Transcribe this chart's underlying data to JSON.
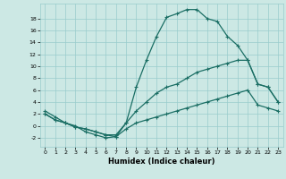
{
  "xlabel": "Humidex (Indice chaleur)",
  "ylabel": "",
  "xlim": [
    -0.5,
    23.5
  ],
  "ylim": [
    -3.5,
    20.5
  ],
  "yticks": [
    -2,
    0,
    2,
    4,
    6,
    8,
    10,
    12,
    14,
    16,
    18
  ],
  "xticks": [
    0,
    1,
    2,
    3,
    4,
    5,
    6,
    7,
    8,
    9,
    10,
    11,
    12,
    13,
    14,
    15,
    16,
    17,
    18,
    19,
    20,
    21,
    22,
    23
  ],
  "bg_color": "#cce8e4",
  "grid_color": "#99cccc",
  "line_color": "#1a6e64",
  "line1_x": [
    0,
    1,
    2,
    3,
    4,
    5,
    6,
    7,
    8,
    9,
    10,
    11,
    12,
    13,
    14,
    15,
    16,
    17,
    18,
    19,
    20,
    21,
    22,
    23
  ],
  "line1_y": [
    2.5,
    1.5,
    0.5,
    0.0,
    -1.0,
    -1.5,
    -2.0,
    -1.8,
    0.5,
    6.5,
    11.0,
    15.0,
    18.2,
    18.8,
    19.5,
    19.5,
    18.0,
    17.5,
    15.0,
    13.5,
    11.0,
    7.0,
    6.5,
    4.0
  ],
  "line2_x": [
    0,
    1,
    2,
    3,
    4,
    5,
    6,
    7,
    8,
    9,
    10,
    11,
    12,
    13,
    14,
    15,
    16,
    17,
    18,
    19,
    20,
    21,
    22,
    23
  ],
  "line2_y": [
    2.0,
    1.0,
    0.5,
    -0.2,
    -0.5,
    -1.0,
    -1.5,
    -1.5,
    0.5,
    2.5,
    4.0,
    5.5,
    6.5,
    7.0,
    8.0,
    9.0,
    9.5,
    10.0,
    10.5,
    11.0,
    11.0,
    7.0,
    6.5,
    4.0
  ],
  "line3_x": [
    0,
    1,
    2,
    3,
    4,
    5,
    6,
    7,
    8,
    9,
    10,
    11,
    12,
    13,
    14,
    15,
    16,
    17,
    18,
    19,
    20,
    21,
    22,
    23
  ],
  "line3_y": [
    2.0,
    1.0,
    0.5,
    -0.2,
    -0.5,
    -1.0,
    -1.5,
    -1.8,
    -0.5,
    0.5,
    1.0,
    1.5,
    2.0,
    2.5,
    3.0,
    3.5,
    4.0,
    4.5,
    5.0,
    5.5,
    6.0,
    3.5,
    3.0,
    2.5
  ]
}
